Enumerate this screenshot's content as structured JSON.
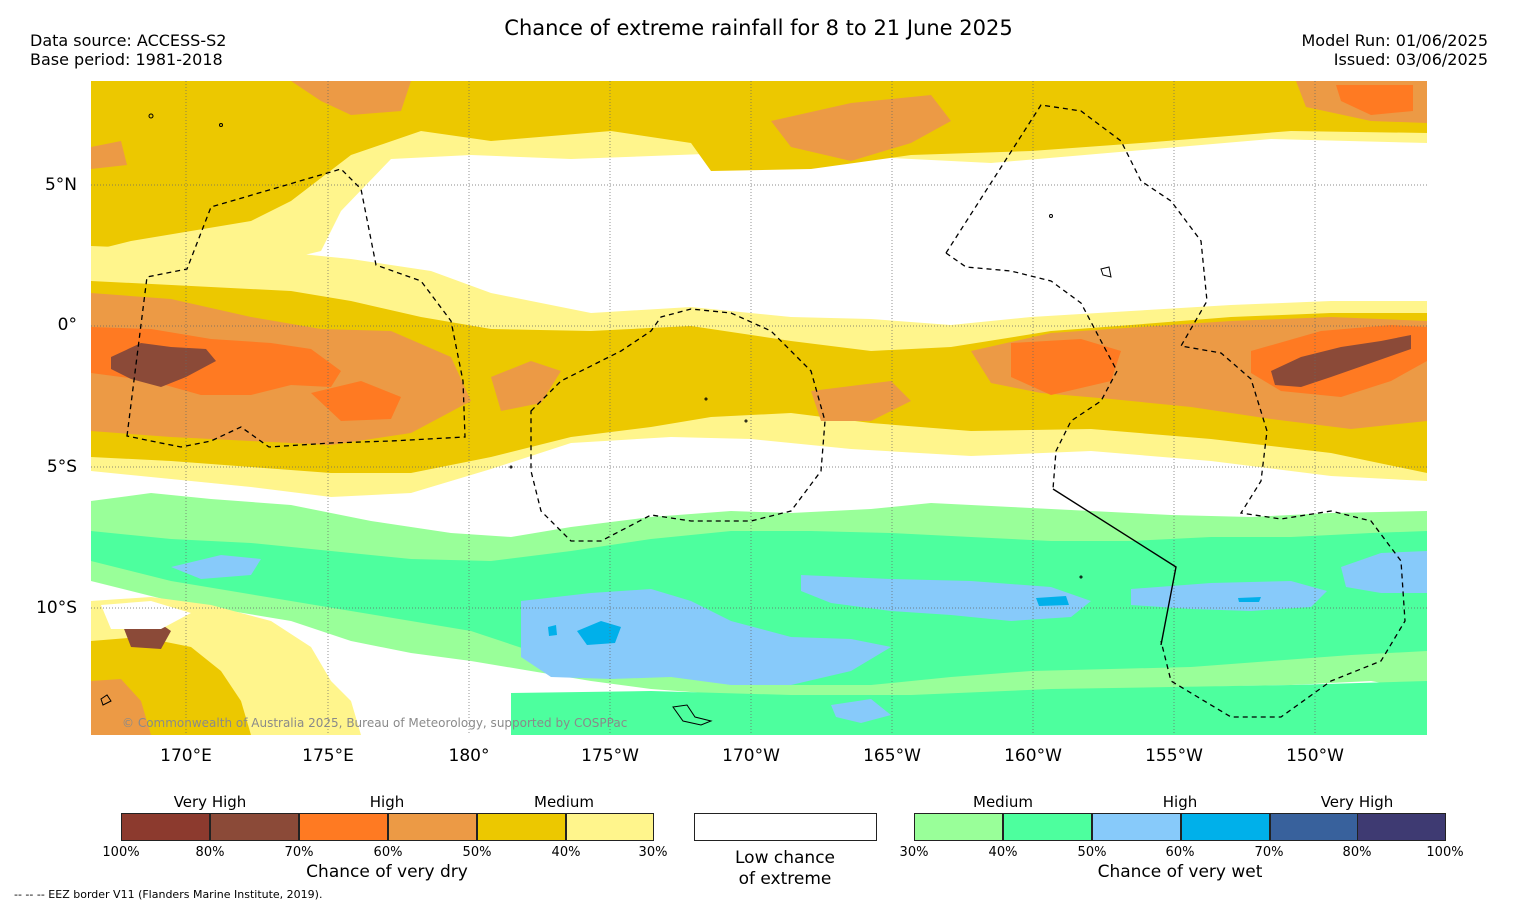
{
  "title": "Chance of extreme rainfall for 8 to 21 June 2025",
  "data_source": "Data source: ACCESS-S2",
  "base_period": "Base period: 1981-2018",
  "model_run": "Model Run: 01/06/2025",
  "issued": "Issued: 03/06/2025",
  "copyright": "© Commonwealth of Australia 2025, Bureau of Meteorology, supported by COSPPac",
  "map": {
    "lat_labels": [
      "5°N",
      "0°",
      "5°S",
      "10°S"
    ],
    "lon_labels": [
      "170°E",
      "175°E",
      "180°",
      "175°W",
      "170°W",
      "165°W",
      "160°W",
      "155°W",
      "150°W"
    ]
  },
  "legend": {
    "dry": {
      "levels": [
        "Very High",
        "High",
        "Medium"
      ],
      "percent_labels": [
        "100%",
        "80%",
        "70%",
        "60%",
        "50%",
        "40%",
        "30%"
      ],
      "colors": [
        "#8c3a2e",
        "#8b4a38",
        "#ff7a22",
        "#ec9a45",
        "#ecc800",
        "#fff58c"
      ],
      "caption": "Chance of very dry"
    },
    "low": {
      "caption_line1": "Low chance",
      "caption_line2": "of extreme",
      "color": "#ffffff"
    },
    "wet": {
      "levels": [
        "Medium",
        "High",
        "Very High"
      ],
      "percent_labels": [
        "30%",
        "40%",
        "50%",
        "60%",
        "70%",
        "80%",
        "100%"
      ],
      "colors": [
        "#99ff99",
        "#4dff9e",
        "#87cafa",
        "#00b0ea",
        "#38619c",
        "#3e3a72"
      ],
      "caption": "Chance of very wet"
    }
  },
  "eez_note": "--  --  -- EEZ border V11 (Flanders Marine Institute, 2019)."
}
